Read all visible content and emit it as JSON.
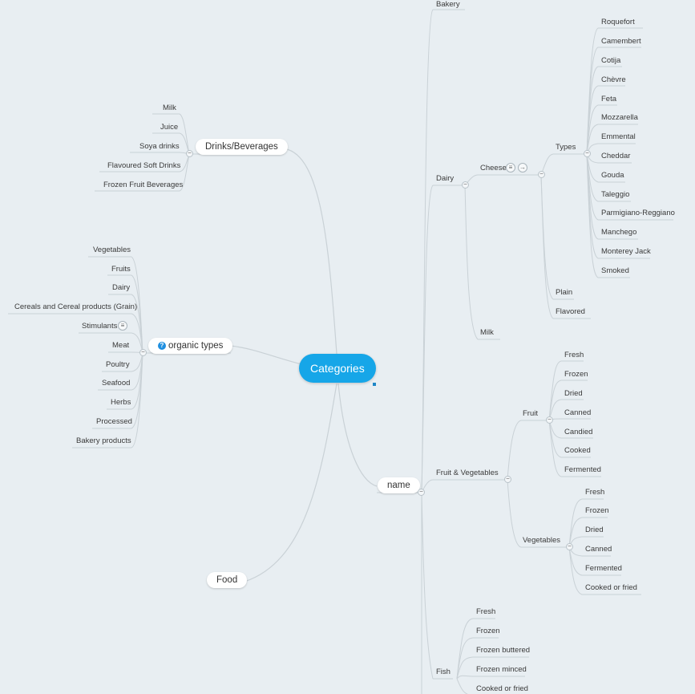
{
  "root": {
    "label": "Categories"
  },
  "branches": {
    "drinks": {
      "label": "Drinks/Beverages",
      "items": [
        "Milk",
        "Juice",
        "Soya drinks",
        "Flavoured Soft Drinks",
        "Frozen Fruit Beverages"
      ]
    },
    "organic": {
      "label": "organic types",
      "help_icon": "?",
      "items": [
        "Vegetables",
        "Fruits",
        "Dairy",
        "Cereals and Cereal products (Grain)",
        "Stimulants",
        "Meat",
        "Poultry",
        "Seafood",
        "Herbs",
        "Processed",
        "Bakery products"
      ]
    },
    "food": {
      "label": "Food"
    },
    "name": {
      "label": "name",
      "bakery": "Bakery",
      "dairy": {
        "label": "Dairy",
        "cheese": {
          "label": "Cheese",
          "types": {
            "label": "Types",
            "items": [
              "Roquefort",
              "Camembert",
              "Cotija",
              "Chèvre",
              "Feta",
              "Mozzarella",
              "Emmental",
              "Cheddar",
              "Gouda",
              "Taleggio",
              "Parmigiano-Reggiano",
              "Manchego",
              "Monterey Jack",
              "Smoked"
            ]
          },
          "plain": "Plain",
          "flavored": "Flavored"
        },
        "milk": "Milk"
      },
      "fruit_veg": {
        "label": "Fruit & Vegetables",
        "fruit": {
          "label": "Fruit",
          "items": [
            "Fresh",
            "Frozen",
            "Dried",
            "Canned",
            "Candied",
            "Cooked",
            "Fermented"
          ]
        },
        "vegetables": {
          "label": "Vegetables",
          "items": [
            "Fresh",
            "Frozen",
            "Dried",
            "Canned",
            "Fermented",
            "Cooked or fried"
          ]
        }
      },
      "fish": {
        "label": "Fish",
        "items": [
          "Fresh",
          "Frozen",
          "Frozen buttered",
          "Frozen minced",
          "Cooked or fried"
        ]
      }
    }
  },
  "icons": {
    "collapse": "−",
    "note": "≡",
    "link": "→"
  },
  "colors": {
    "background": "#e8eef2",
    "root": "#16a6e8",
    "connector": "#c9d1d6"
  }
}
